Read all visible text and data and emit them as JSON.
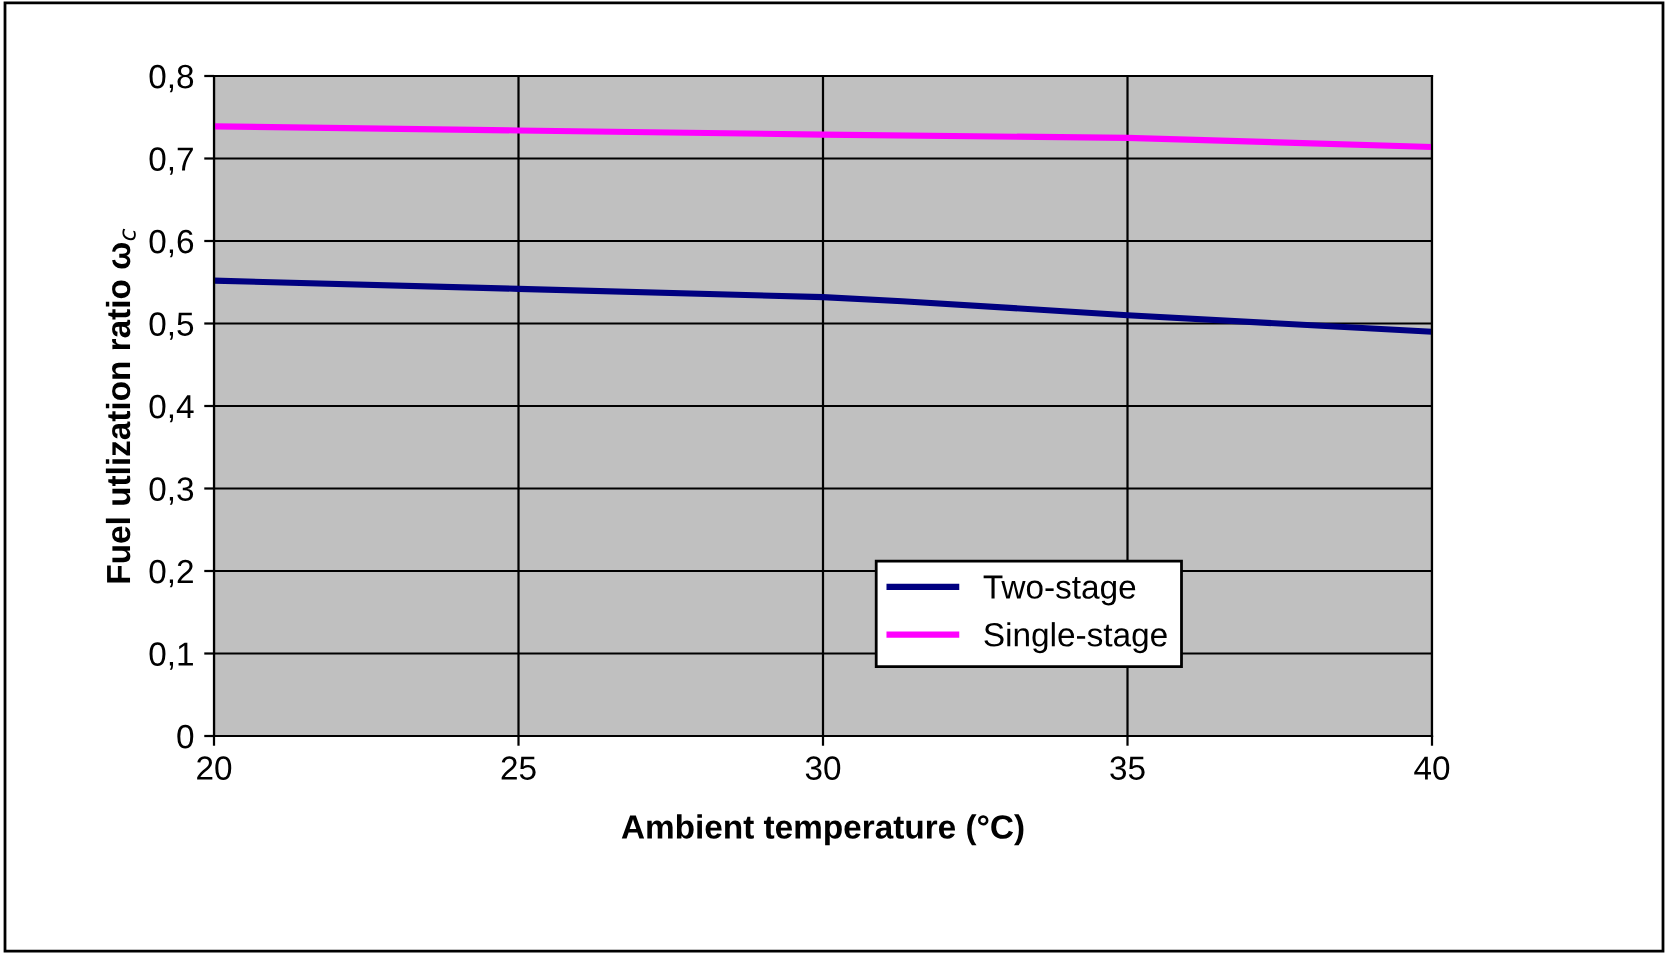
{
  "chart_data": {
    "type": "line",
    "xlabel": "Ambient temperature (°C)",
    "ylabel": "Fuel utlization ratio ω$_{c}$",
    "xlim": [
      20,
      40
    ],
    "xticks": [
      20,
      25,
      30,
      35,
      40
    ],
    "ylim": [
      0,
      0.8
    ],
    "yticks": [
      {
        "value": 0,
        "label": "0"
      },
      {
        "value": 0.1,
        "label": "0,1"
      },
      {
        "value": 0.2,
        "label": "0,2"
      },
      {
        "value": 0.3,
        "label": "0,3"
      },
      {
        "value": 0.4,
        "label": "0,4"
      },
      {
        "value": 0.5,
        "label": "0,5"
      },
      {
        "value": 0.6,
        "label": "0,6"
      },
      {
        "value": 0.7,
        "label": "0,7"
      },
      {
        "value": 0.8,
        "label": "0,8"
      }
    ],
    "grid": true,
    "legend": "bottom right",
    "marker": "none",
    "line_style": "solid",
    "series": [
      {
        "name": "Two-stage",
        "color": "#000080",
        "x": [
          20,
          25,
          30,
          31.3,
          35,
          40
        ],
        "values": [
          0.552,
          0.542,
          0.532,
          0.527,
          0.51,
          0.49
        ]
      },
      {
        "name": "Single-stage",
        "color": "#ff00ff",
        "x": [
          20,
          25,
          30,
          35,
          40
        ],
        "values": [
          0.739,
          0.734,
          0.729,
          0.725,
          0.714
        ]
      }
    ]
  }
}
